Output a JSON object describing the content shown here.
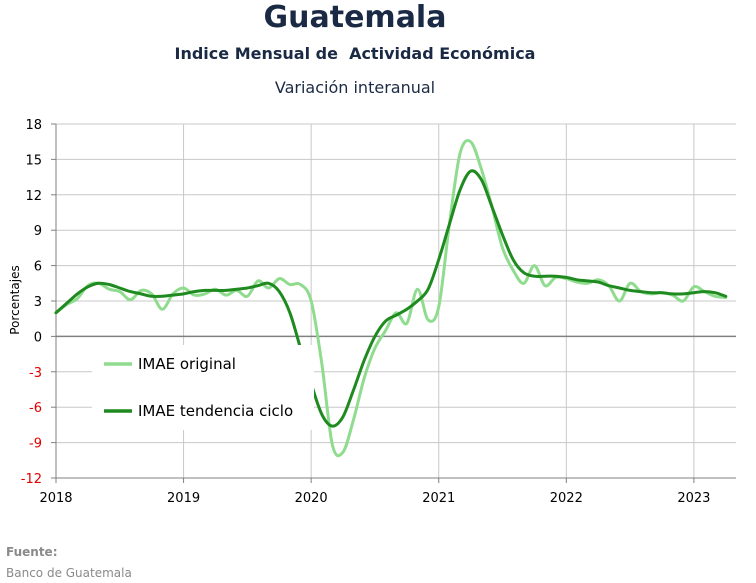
{
  "header": {
    "title": "Guatemala",
    "subtitle": "Indice Mensual de  Actividad Económica",
    "subtitle2": "Variación interanual"
  },
  "footer": {
    "source_label": "Fuente:",
    "source_text": "Banco de Guatemala"
  },
  "colors": {
    "original": "#8fdc8f",
    "trend": "#1f8a1f",
    "negative_tick": "#e00000",
    "grid": "#c8c8c8",
    "zero_line": "#808080"
  },
  "chart_data": {
    "type": "line",
    "title": "Indice Mensual de  Actividad Económica",
    "subtitle": "Variación interanual",
    "xlabel": "",
    "ylabel": "Porcentajes",
    "ylim": [
      -12,
      18
    ],
    "yticks": [
      "18",
      "15",
      "12",
      "9",
      "6",
      "3",
      "0",
      "-3",
      "-6",
      "-9",
      "-12"
    ],
    "xticks": [
      "2018",
      "2019",
      "2020",
      "2021",
      "2022",
      "2023"
    ],
    "grid": true,
    "legend_position": "lower-left",
    "series": [
      {
        "name": "IMAE original",
        "x": [
          "2018-01",
          "2018-02",
          "2018-03",
          "2018-04",
          "2018-05",
          "2018-06",
          "2018-07",
          "2018-08",
          "2018-09",
          "2018-10",
          "2018-11",
          "2018-12",
          "2019-01",
          "2019-02",
          "2019-03",
          "2019-04",
          "2019-05",
          "2019-06",
          "2019-07",
          "2019-08",
          "2019-09",
          "2019-10",
          "2019-11",
          "2019-12",
          "2020-01",
          "2020-02",
          "2020-03",
          "2020-04",
          "2020-05",
          "2020-06",
          "2020-07",
          "2020-08",
          "2020-09",
          "2020-10",
          "2020-11",
          "2020-12",
          "2021-01",
          "2021-02",
          "2021-03",
          "2021-04",
          "2021-05",
          "2021-06",
          "2021-07",
          "2021-08",
          "2021-09",
          "2021-10",
          "2021-11",
          "2021-12",
          "2022-01",
          "2022-02",
          "2022-03",
          "2022-04",
          "2022-05",
          "2022-06",
          "2022-07",
          "2022-08",
          "2022-09",
          "2022-10",
          "2022-11",
          "2022-12",
          "2023-01",
          "2023-02",
          "2023-03",
          "2023-04"
        ],
        "values": [
          2.0,
          2.7,
          3.2,
          4.3,
          4.5,
          4.0,
          3.8,
          3.1,
          3.9,
          3.6,
          2.3,
          3.6,
          4.1,
          3.5,
          3.6,
          4.0,
          3.5,
          3.9,
          3.4,
          4.7,
          4.1,
          4.9,
          4.4,
          4.4,
          3.0,
          -2.3,
          -9.2,
          -9.8,
          -7.0,
          -3.5,
          -1.0,
          0.5,
          2.0,
          1.1,
          4.0,
          1.4,
          2.5,
          9.5,
          15.5,
          16.5,
          14.2,
          11.0,
          7.5,
          5.6,
          4.5,
          6.0,
          4.3,
          5.0,
          4.9,
          4.6,
          4.5,
          4.8,
          4.3,
          3.0,
          4.5,
          3.8,
          3.6,
          3.7,
          3.5,
          3.0,
          4.2,
          3.8,
          3.4,
          3.3
        ]
      },
      {
        "name": "IMAE tendencia ciclo",
        "x": [
          "2018-01",
          "2018-02",
          "2018-03",
          "2018-04",
          "2018-05",
          "2018-06",
          "2018-07",
          "2018-08",
          "2018-09",
          "2018-10",
          "2018-11",
          "2018-12",
          "2019-01",
          "2019-02",
          "2019-03",
          "2019-04",
          "2019-05",
          "2019-06",
          "2019-07",
          "2019-08",
          "2019-09",
          "2019-10",
          "2019-11",
          "2019-12",
          "2020-01",
          "2020-02",
          "2020-03",
          "2020-04",
          "2020-05",
          "2020-06",
          "2020-07",
          "2020-08",
          "2020-09",
          "2020-10",
          "2020-11",
          "2020-12",
          "2021-01",
          "2021-02",
          "2021-03",
          "2021-04",
          "2021-05",
          "2021-06",
          "2021-07",
          "2021-08",
          "2021-09",
          "2021-10",
          "2021-11",
          "2021-12",
          "2022-01",
          "2022-02",
          "2022-03",
          "2022-04",
          "2022-05",
          "2022-06",
          "2022-07",
          "2022-08",
          "2022-09",
          "2022-10",
          "2022-11",
          "2022-12",
          "2023-01",
          "2023-02",
          "2023-03",
          "2023-04"
        ],
        "values": [
          2.0,
          2.8,
          3.6,
          4.2,
          4.5,
          4.4,
          4.1,
          3.8,
          3.6,
          3.4,
          3.4,
          3.5,
          3.6,
          3.8,
          3.9,
          3.9,
          3.9,
          4.0,
          4.1,
          4.3,
          4.5,
          3.8,
          2.0,
          -1.0,
          -4.0,
          -6.6,
          -7.6,
          -6.8,
          -4.5,
          -2.0,
          0.0,
          1.3,
          1.8,
          2.3,
          3.0,
          4.0,
          6.5,
          9.5,
          12.4,
          14.0,
          13.3,
          11.0,
          8.6,
          6.5,
          5.4,
          5.1,
          5.1,
          5.1,
          5.0,
          4.8,
          4.7,
          4.6,
          4.3,
          4.1,
          3.9,
          3.8,
          3.7,
          3.7,
          3.6,
          3.6,
          3.7,
          3.8,
          3.7,
          3.4
        ]
      }
    ]
  }
}
